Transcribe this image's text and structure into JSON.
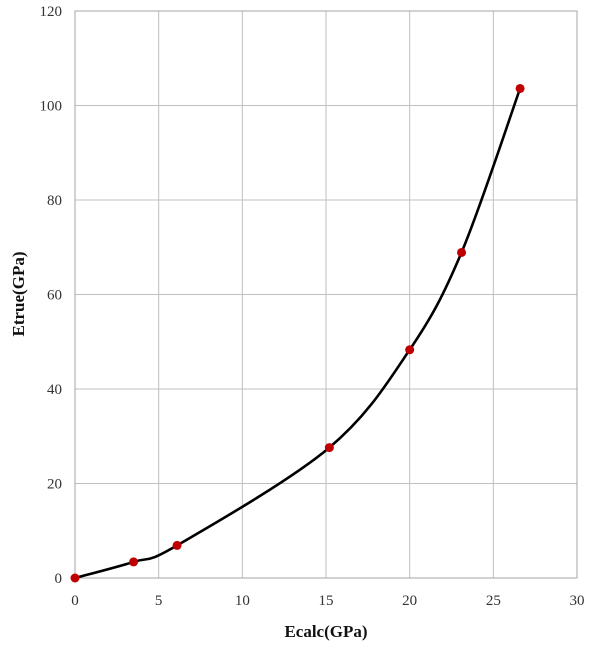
{
  "chart_data": {
    "type": "scatter",
    "title": "",
    "xlabel": "Ecalc(GPa)",
    "ylabel": "Etrue(GPa)",
    "xlim": [
      0,
      30
    ],
    "ylim": [
      0,
      120
    ],
    "xticks": [
      0,
      5,
      10,
      15,
      20,
      25,
      30
    ],
    "yticks": [
      0,
      20,
      40,
      60,
      80,
      100,
      120
    ],
    "grid": true,
    "legend": "none",
    "series": [
      {
        "x": [
          0,
          3.5,
          6.1,
          15.2,
          20.0,
          23.1,
          26.6
        ],
        "y": [
          0,
          3.4,
          6.9,
          27.6,
          48.3,
          68.9,
          103.6
        ],
        "marker_color": "#c00000",
        "trendline": "smooth curve",
        "line_color": "#000000"
      }
    ]
  }
}
